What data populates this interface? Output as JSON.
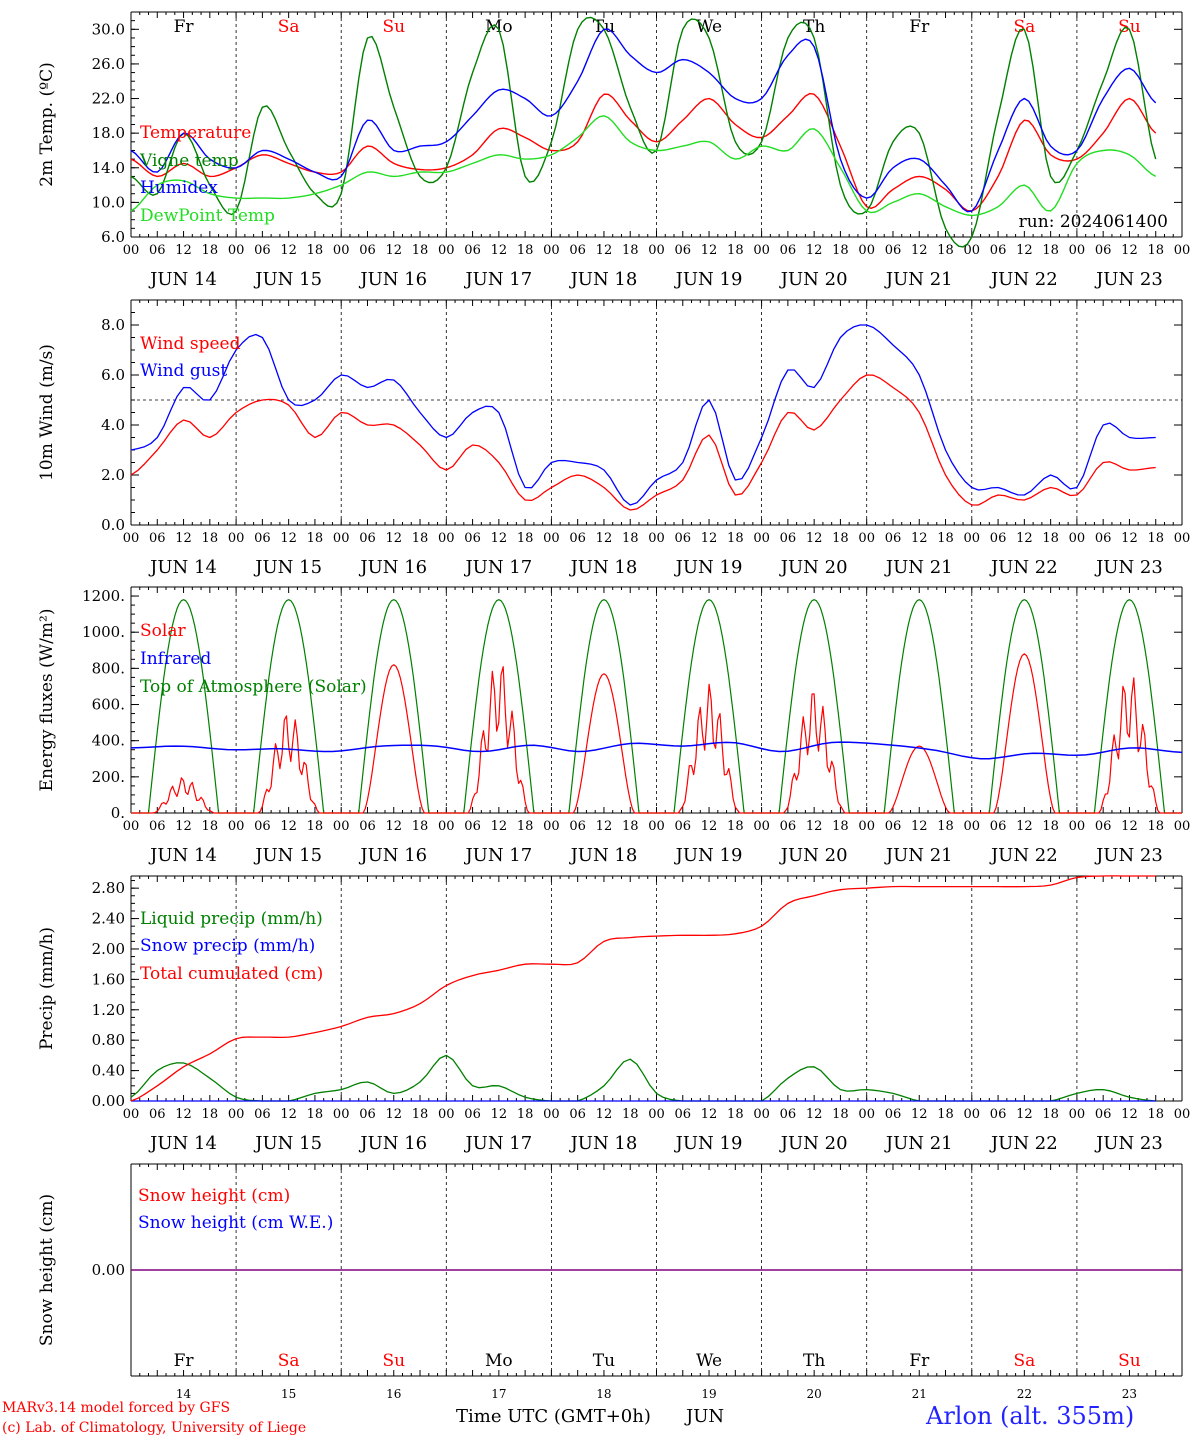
{
  "colors": {
    "red": "#ff0000",
    "blue": "#0000ff",
    "green": "#008000",
    "lightgreen": "#22dd22",
    "purple": "#800080",
    "weekday": "#000000",
    "weekend": "#ff0000"
  },
  "days": {
    "dates": [
      "JUN 14",
      "JUN 15",
      "JUN 16",
      "JUN 17",
      "JUN 18",
      "JUN 19",
      "JUN 20",
      "JUN 21",
      "JUN 22",
      "JUN 23"
    ],
    "daynums": [
      "14",
      "15",
      "16",
      "17",
      "18",
      "19",
      "20",
      "21",
      "22",
      "23"
    ],
    "weekdays": [
      "Fr",
      "Sa",
      "Su",
      "Mo",
      "Tu",
      "We",
      "Th",
      "Fr",
      "Sa",
      "Su"
    ],
    "weekend": [
      false,
      true,
      true,
      false,
      false,
      false,
      false,
      false,
      true,
      true
    ],
    "hour_ticks": [
      "00",
      "06",
      "12",
      "18"
    ],
    "end_tick": "00"
  },
  "footer": {
    "model_credit": "MARv3.14 model forced by GFS",
    "lab_credit": "(c) Lab. of Climatology, University of Liege",
    "x_title": "Time UTC (GMT+0h)",
    "month": "JUN",
    "station": "Arlon (alt. 355m)"
  },
  "chart_data": [
    {
      "type": "line",
      "ylabel": "2m Temp. (ºC)",
      "ylim": [
        6,
        32
      ],
      "yticks": [
        6,
        10,
        14,
        18,
        22,
        26,
        30
      ],
      "ytick_labels": [
        "6.0",
        "10.0",
        "14.0",
        "18.0",
        "22.0",
        "26.0",
        "30.0"
      ],
      "annotation": "run: 2024061400",
      "x_hours": [
        0,
        6,
        12,
        18,
        24,
        30,
        36,
        42,
        48,
        54,
        60,
        66,
        72,
        78,
        84,
        90,
        96,
        102,
        108,
        114,
        120,
        126,
        132,
        138,
        144,
        150,
        156,
        162,
        168,
        174,
        180,
        186,
        192,
        198,
        204,
        210,
        216,
        222,
        228,
        234
      ],
      "series": [
        {
          "name": "Temperature",
          "color": "red",
          "values": [
            15,
            13,
            14.5,
            13,
            14,
            15.5,
            14.5,
            13.5,
            13.5,
            16.5,
            14.5,
            13.8,
            14,
            15.5,
            18.5,
            17.5,
            16,
            17,
            22.5,
            19.5,
            17,
            19.5,
            22,
            19,
            17.5,
            20,
            22.5,
            16.5,
            9.5,
            11.5,
            13,
            11.5,
            9,
            13,
            19.5,
            15.5,
            15,
            18,
            22,
            18
          ]
        },
        {
          "name": "Vigne temp",
          "color": "green",
          "values": [
            13,
            11,
            18,
            12,
            9,
            21,
            16,
            11,
            11,
            29,
            21,
            13,
            14,
            25,
            30,
            13,
            17,
            30,
            30,
            21,
            16,
            30,
            29,
            17,
            17,
            29,
            29,
            12,
            9,
            17,
            18,
            7,
            6,
            20,
            30,
            13,
            16,
            24,
            30,
            15
          ]
        },
        {
          "name": "Humidex",
          "color": "blue",
          "values": [
            16,
            13.5,
            18,
            15,
            14,
            16,
            15,
            13.5,
            13,
            19.5,
            16,
            16.5,
            17,
            20,
            23,
            22,
            20,
            24,
            30,
            27,
            25,
            26.5,
            25,
            22,
            22,
            27,
            28,
            15,
            10.5,
            14,
            15,
            12,
            9,
            16,
            22,
            16.5,
            16,
            22,
            25.5,
            21.5
          ]
        },
        {
          "name": "DewPoint Temp",
          "color": "lightgreen",
          "values": [
            9,
            12,
            12.5,
            11,
            10.5,
            10.5,
            10.5,
            11,
            12,
            13.5,
            13,
            13.5,
            13.5,
            14.5,
            15.5,
            15,
            15.5,
            17.5,
            20,
            17,
            16,
            16.5,
            17,
            15,
            16.5,
            16,
            18.5,
            14,
            9,
            10,
            11,
            9.5,
            8.5,
            9.5,
            12,
            9,
            14.5,
            16,
            15.5,
            13
          ]
        }
      ]
    },
    {
      "type": "line",
      "ylabel": "10m Wind (m/s)",
      "ylim": [
        0,
        9
      ],
      "yticks": [
        0,
        2,
        4,
        6,
        8
      ],
      "ytick_labels": [
        "0.0",
        "2.0",
        "4.0",
        "6.0",
        "8.0"
      ],
      "reference_line": 5,
      "x_hours": [
        0,
        6,
        12,
        18,
        24,
        30,
        36,
        42,
        48,
        54,
        60,
        66,
        72,
        78,
        84,
        90,
        96,
        102,
        108,
        114,
        120,
        126,
        132,
        138,
        144,
        150,
        156,
        162,
        168,
        174,
        180,
        186,
        192,
        198,
        204,
        210,
        216,
        222,
        228,
        234
      ],
      "series": [
        {
          "name": "Wind speed",
          "color": "red",
          "values": [
            2,
            3,
            4.2,
            3.5,
            4.5,
            5,
            4.8,
            3.5,
            4.5,
            4,
            4,
            3.2,
            2.2,
            3.2,
            2.5,
            1,
            1.5,
            2,
            1.5,
            0.6,
            1.2,
            1.8,
            3.6,
            1.2,
            2.5,
            4.5,
            3.8,
            5,
            6,
            5.5,
            4.5,
            2,
            0.8,
            1.2,
            1,
            1.5,
            1.2,
            2.5,
            2.2,
            2.3
          ]
        },
        {
          "name": "Wind gust",
          "color": "blue",
          "values": [
            3,
            3.5,
            5.5,
            5,
            7,
            7.5,
            5,
            5,
            6,
            5.5,
            5.8,
            4.5,
            3.5,
            4.5,
            4.5,
            1.5,
            2.5,
            2.5,
            2.2,
            0.8,
            1.8,
            2.5,
            5,
            1.8,
            3.5,
            6.2,
            5.5,
            7.5,
            8,
            7.2,
            6,
            3,
            1.5,
            1.5,
            1.2,
            2,
            1.5,
            4,
            3.5,
            3.5
          ]
        }
      ]
    },
    {
      "type": "line",
      "ylabel": "Energy fluxes (W/m²)",
      "ylim": [
        0,
        1250
      ],
      "yticks": [
        0,
        200,
        400,
        600,
        800,
        1000,
        1200
      ],
      "ytick_labels": [
        "0.",
        "200.",
        "400.",
        "600.",
        "800.",
        "1000.",
        "1200."
      ],
      "solar_peaks": [
        200,
        570,
        820,
        860,
        770,
        720,
        700,
        370,
        880,
        780
      ],
      "toa_peak": 1180,
      "infrared_values": [
        360,
        370,
        350,
        355,
        340,
        370,
        372,
        340,
        375,
        340,
        385,
        370,
        390,
        340,
        390,
        380,
        350,
        300,
        330,
        320,
        360,
        335
      ],
      "series": [
        {
          "name": "Solar",
          "color": "red"
        },
        {
          "name": "Infrared",
          "color": "blue"
        },
        {
          "name": "Top of Atmosphere (Solar)",
          "color": "green"
        }
      ]
    },
    {
      "type": "line",
      "ylabel": "Precip (mm/h)",
      "ylim": [
        0,
        2.96
      ],
      "yticks": [
        0,
        0.4,
        0.8,
        1.2,
        1.6,
        2.0,
        2.4,
        2.8
      ],
      "ytick_labels": [
        "0.00",
        "0.40",
        "0.80",
        "1.20",
        "1.60",
        "2.00",
        "2.40",
        "2.80"
      ],
      "x_hours": [
        0,
        6,
        12,
        18,
        24,
        30,
        36,
        42,
        48,
        54,
        60,
        66,
        72,
        78,
        84,
        90,
        96,
        102,
        108,
        114,
        120,
        126,
        132,
        138,
        144,
        150,
        156,
        162,
        168,
        174,
        180,
        186,
        192,
        198,
        204,
        210,
        216,
        222,
        228,
        234
      ],
      "series": [
        {
          "name": "Liquid precip (mm/h)",
          "color": "green",
          "values": [
            0.05,
            0.4,
            0.5,
            0.3,
            0.05,
            0,
            0,
            0.1,
            0.15,
            0.25,
            0.1,
            0.25,
            0.6,
            0.2,
            0.2,
            0.05,
            0,
            0,
            0.2,
            0.55,
            0.1,
            0,
            0,
            0,
            0,
            0.3,
            0.45,
            0.15,
            0.15,
            0.1,
            0,
            0,
            0,
            0,
            0,
            0,
            0.1,
            0.15,
            0.05,
            0
          ]
        },
        {
          "name": "Snow precip (mm/h)",
          "color": "blue",
          "values": [
            0,
            0,
            0,
            0,
            0,
            0,
            0,
            0,
            0,
            0,
            0,
            0,
            0,
            0,
            0,
            0,
            0,
            0,
            0,
            0,
            0,
            0,
            0,
            0,
            0,
            0,
            0,
            0,
            0,
            0,
            0,
            0,
            0,
            0,
            0,
            0,
            0,
            0,
            0,
            0
          ]
        },
        {
          "name": "Total cumulated (cm)",
          "color": "red",
          "values": [
            0,
            0.2,
            0.45,
            0.62,
            0.82,
            0.84,
            0.84,
            0.9,
            0.98,
            1.1,
            1.15,
            1.28,
            1.52,
            1.65,
            1.72,
            1.8,
            1.8,
            1.82,
            2.1,
            2.15,
            2.17,
            2.18,
            2.18,
            2.2,
            2.3,
            2.6,
            2.7,
            2.78,
            2.8,
            2.82,
            2.82,
            2.82,
            2.82,
            2.82,
            2.82,
            2.84,
            2.94,
            2.96,
            2.96,
            2.96
          ]
        }
      ]
    },
    {
      "type": "line",
      "ylabel": "Snow height (cm)",
      "ytick_labels": [
        "0.00"
      ],
      "series": [
        {
          "name": "Snow height (cm)",
          "color": "red",
          "values": [
            0,
            0
          ]
        },
        {
          "name": "Snow height (cm W.E.)",
          "color": "blue",
          "values": [
            0,
            0
          ]
        }
      ]
    }
  ]
}
